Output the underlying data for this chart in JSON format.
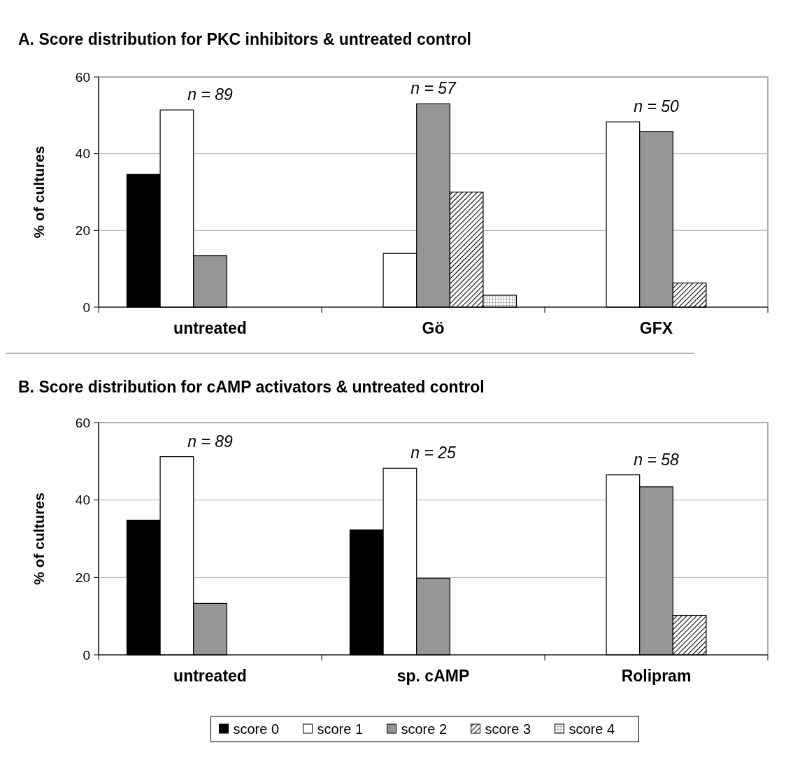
{
  "chart_data": [
    {
      "type": "bar",
      "title": "A. Score distribution for PKC inhibitors & untreated control",
      "ylabel": "% of cultures",
      "categories": [
        "untreated",
        "Gö",
        "GFX"
      ],
      "series": [
        {
          "color": "#000000",
          "values": [
            34.6,
            null,
            null
          ]
        },
        {
          "color": "#ffffff",
          "values": [
            51.4,
            14.0,
            48.3
          ]
        },
        {
          "color": "#969696",
          "values": [
            13.4,
            53.0,
            45.8
          ]
        },
        {
          "color": "#000000",
          "values": [
            null,
            30.0,
            6.3
          ]
        },
        {
          "color": "#000000",
          "values": [
            null,
            3.1,
            null
          ]
        }
      ],
      "ylim": [
        0,
        60
      ],
      "yticks": [
        0,
        20,
        40,
        60
      ],
      "grid": "y",
      "legend": false,
      "annotations": [
        "n = 89",
        "n = 57",
        "n = 50"
      ]
    },
    {
      "type": "bar",
      "title": "B. Score distribution for cAMP activators & untreated control",
      "ylabel": "% of cultures",
      "categories": [
        "untreated",
        "sp. cAMP",
        "Rolipram"
      ],
      "series": [
        {
          "name": "score 0",
          "color": "#000000",
          "values": [
            34.8,
            32.3,
            null
          ]
        },
        {
          "name": "score 1",
          "color": "#ffffff",
          "values": [
            51.2,
            48.2,
            46.5
          ]
        },
        {
          "name": "score 2",
          "color": "#969696",
          "values": [
            13.3,
            19.8,
            43.4
          ]
        },
        {
          "name": "score 3",
          "color": "#000000",
          "values": [
            null,
            null,
            10.2
          ]
        },
        {
          "name": "score 4",
          "color": "#000000",
          "values": [
            null,
            null,
            null
          ]
        }
      ],
      "ylim": [
        0,
        60
      ],
      "yticks": [
        0,
        20,
        40,
        60
      ],
      "grid": "y",
      "legend": "bottom",
      "annotations": [
        "n = 89",
        "n = 25",
        "n = 58"
      ]
    }
  ]
}
